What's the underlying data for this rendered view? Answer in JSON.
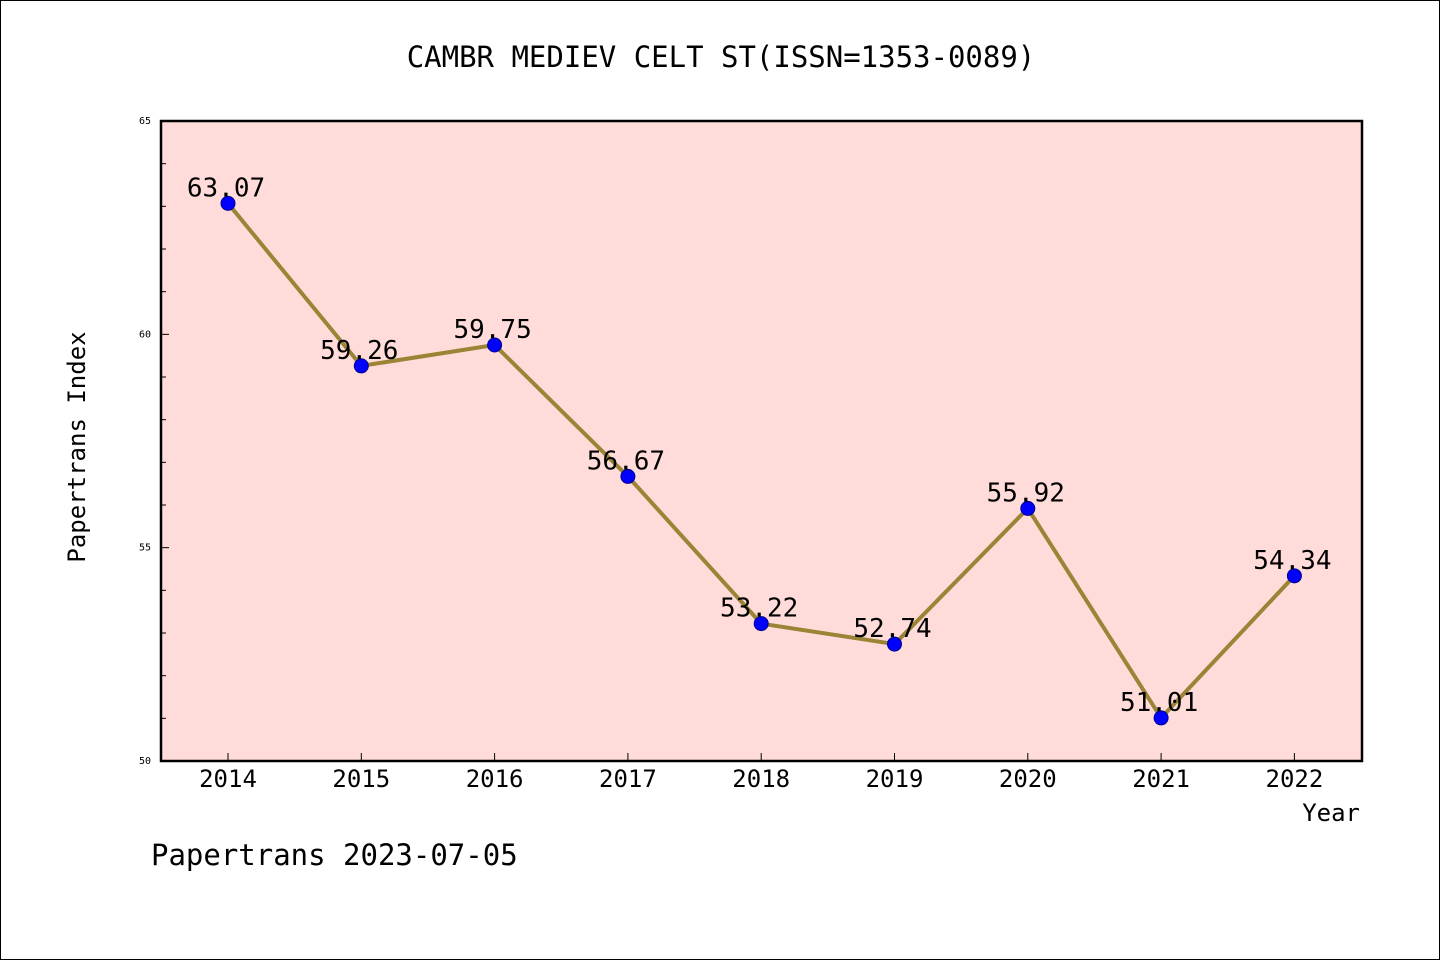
{
  "chart_data": {
    "type": "line",
    "title": "CAMBR MEDIEV CELT ST(ISSN=1353-0089)",
    "xlabel": "Year",
    "ylabel": "Papertrans Index",
    "x": [
      "2014",
      "2015",
      "2016",
      "2017",
      "2018",
      "2019",
      "2020",
      "2021",
      "2022"
    ],
    "values": [
      63.07,
      59.26,
      59.75,
      56.67,
      53.22,
      52.74,
      55.92,
      51.01,
      54.34
    ],
    "data_labels": [
      "63.07",
      "59.26",
      "59.75",
      "56.67",
      "53.22",
      "52.74",
      "55.92",
      "51.01",
      "54.34"
    ],
    "ylim": [
      50,
      65
    ],
    "yticks": [
      "50",
      "55",
      "60",
      "65"
    ],
    "grid": false,
    "plot_background": "#ffdcd9",
    "line_color": "#9b8435",
    "marker_color": "#0000ff"
  },
  "footer": "Papertrans 2023-07-05"
}
